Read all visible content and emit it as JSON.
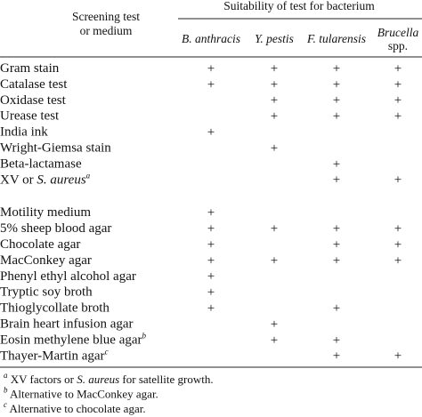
{
  "header": {
    "stub": [
      "Screening test",
      "or medium"
    ],
    "spanner": "Suitability of test for bacterium",
    "columns": [
      [
        [
          {
            "text": "B. anthracis",
            "style": "italic"
          }
        ]
      ],
      [
        [
          {
            "text": "Y. pestis",
            "style": "italic"
          }
        ]
      ],
      [
        [
          {
            "text": "F. tularensis",
            "style": "italic"
          }
        ]
      ],
      [
        [
          {
            "text": "Brucella",
            "style": "italic"
          }
        ],
        [
          {
            "text": "spp.",
            "style": "normal"
          }
        ]
      ]
    ]
  },
  "table": {
    "groups": [
      {
        "rows": [
          {
            "label": [
              {
                "text": "Gram stain",
                "style": "normal"
              }
            ],
            "cells": [
              "+",
              "+",
              "+",
              "+"
            ]
          },
          {
            "label": [
              {
                "text": "Catalase test",
                "style": "normal"
              }
            ],
            "cells": [
              "+",
              "+",
              "+",
              "+"
            ]
          },
          {
            "label": [
              {
                "text": "Oxidase test",
                "style": "normal"
              }
            ],
            "cells": [
              null,
              "+",
              "+",
              "+"
            ]
          },
          {
            "label": [
              {
                "text": "Urease test",
                "style": "normal"
              }
            ],
            "cells": [
              null,
              "+",
              "+",
              "+"
            ]
          },
          {
            "label": [
              {
                "text": "India ink",
                "style": "normal"
              }
            ],
            "cells": [
              "+",
              null,
              null,
              null
            ]
          },
          {
            "label": [
              {
                "text": "Wright-Giemsa stain",
                "style": "normal"
              }
            ],
            "cells": [
              null,
              "+",
              null,
              null
            ]
          },
          {
            "label": [
              {
                "text": "Beta-lactamase",
                "style": "normal"
              }
            ],
            "cells": [
              null,
              null,
              "+",
              null
            ]
          },
          {
            "label": [
              {
                "text": "XV or ",
                "style": "normal"
              },
              {
                "text": "S. aureus",
                "style": "italic"
              },
              {
                "text": "a",
                "style": "sup"
              }
            ],
            "cells": [
              null,
              null,
              "+",
              "+"
            ]
          }
        ]
      },
      {
        "rows": [
          {
            "label": [
              {
                "text": "Motility medium",
                "style": "normal"
              }
            ],
            "cells": [
              "+",
              null,
              null,
              null
            ]
          },
          {
            "label": [
              {
                "text": "5% sheep blood agar",
                "style": "normal"
              }
            ],
            "cells": [
              "+",
              "+",
              "+",
              "+"
            ]
          },
          {
            "label": [
              {
                "text": "Chocolate agar",
                "style": "normal"
              }
            ],
            "cells": [
              "+",
              null,
              "+",
              "+"
            ]
          },
          {
            "label": [
              {
                "text": "MacConkey agar",
                "style": "normal"
              }
            ],
            "cells": [
              "+",
              "+",
              "+",
              "+"
            ]
          },
          {
            "label": [
              {
                "text": "Phenyl ethyl alcohol agar",
                "style": "normal"
              }
            ],
            "cells": [
              "+",
              null,
              null,
              null
            ]
          },
          {
            "label": [
              {
                "text": "Tryptic soy broth",
                "style": "normal"
              }
            ],
            "cells": [
              "+",
              null,
              null,
              null
            ]
          },
          {
            "label": [
              {
                "text": "Thioglycollate broth",
                "style": "normal"
              }
            ],
            "cells": [
              "+",
              null,
              "+",
              null
            ]
          },
          {
            "label": [
              {
                "text": "Brain heart infusion agar",
                "style": "normal"
              }
            ],
            "cells": [
              null,
              "+",
              null,
              null
            ]
          },
          {
            "label": [
              {
                "text": "Eosin methylene blue agar",
                "style": "normal"
              },
              {
                "text": "b",
                "style": "sup"
              }
            ],
            "cells": [
              null,
              "+",
              "+",
              null
            ]
          },
          {
            "label": [
              {
                "text": "Thayer-Martin agar",
                "style": "normal"
              },
              {
                "text": "c",
                "style": "sup"
              }
            ],
            "cells": [
              null,
              null,
              "+",
              "+"
            ]
          }
        ]
      }
    ]
  },
  "footnotes": [
    [
      {
        "text": "a",
        "style": "sup"
      },
      {
        "text": " XV factors or ",
        "style": "normal"
      },
      {
        "text": "S. aureus",
        "style": "italic"
      },
      {
        "text": " for satellite growth.",
        "style": "normal"
      }
    ],
    [
      {
        "text": "b",
        "style": "sup"
      },
      {
        "text": " Alternative to MacConkey agar.",
        "style": "normal"
      }
    ],
    [
      {
        "text": "c",
        "style": "sup"
      },
      {
        "text": " Alternative to chocolate agar.",
        "style": "normal"
      }
    ]
  ]
}
